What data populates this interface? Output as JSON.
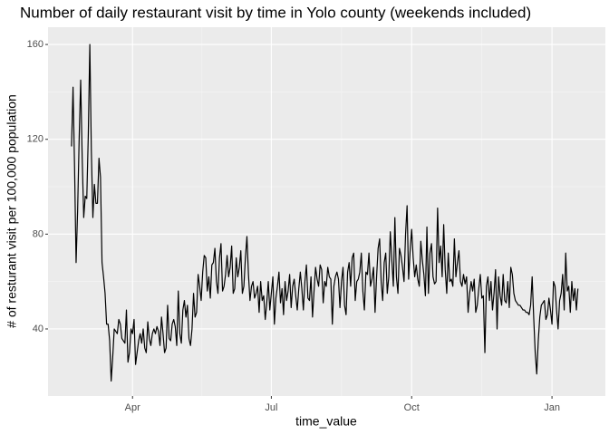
{
  "chart_data": {
    "type": "line",
    "title": "Number of daily restaurant visit by time in Yolo county (weekends included)",
    "x_label": "time_value",
    "y_label": "# of resturant visit per 100,000 population",
    "x": [
      52,
      53,
      54,
      55,
      56,
      57,
      58,
      59,
      60,
      61,
      62,
      63,
      64,
      65,
      66,
      67,
      68,
      69,
      70,
      71,
      72,
      73,
      74,
      75,
      76,
      77,
      78,
      79,
      80,
      81,
      82,
      83,
      84,
      85,
      86,
      87,
      88,
      89,
      90,
      91,
      92,
      93,
      94,
      95,
      96,
      97,
      98,
      99,
      100,
      101,
      102,
      103,
      104,
      105,
      106,
      107,
      108,
      109,
      110,
      111,
      112,
      113,
      114,
      115,
      116,
      117,
      118,
      119,
      120,
      121,
      122,
      123,
      124,
      125,
      126,
      127,
      128,
      129,
      130,
      131,
      132,
      133,
      134,
      135,
      136,
      137,
      138,
      139,
      140,
      141,
      142,
      143,
      144,
      145,
      146,
      147,
      148,
      149,
      150,
      151,
      152,
      153,
      154,
      155,
      156,
      157,
      158,
      159,
      160,
      161,
      162,
      163,
      164,
      165,
      166,
      167,
      168,
      169,
      170,
      171,
      172,
      173,
      174,
      175,
      176,
      177,
      178,
      179,
      180,
      181,
      182,
      183,
      184,
      185,
      186,
      187,
      188,
      189,
      190,
      191,
      192,
      193,
      194,
      195,
      196,
      197,
      198,
      199,
      200,
      201,
      202,
      203,
      204,
      205,
      206,
      207,
      208,
      209,
      210,
      211,
      212,
      213,
      214,
      215,
      216,
      217,
      218,
      219,
      220,
      221,
      222,
      223,
      224,
      225,
      226,
      227,
      228,
      229,
      230,
      231,
      232,
      233,
      234,
      235,
      236,
      237,
      238,
      239,
      240,
      241,
      242,
      243,
      244,
      245,
      246,
      247,
      248,
      249,
      250,
      251,
      252,
      253,
      254,
      255,
      256,
      257,
      258,
      259,
      260,
      261,
      262,
      263,
      264,
      265,
      266,
      267,
      268,
      269,
      270,
      271,
      272,
      273,
      274,
      275,
      276,
      277,
      278,
      279,
      280,
      281,
      282,
      283,
      284,
      285,
      286,
      287,
      288,
      289,
      290,
      291,
      292,
      293,
      294,
      295,
      296,
      297,
      298,
      299,
      300,
      301,
      302,
      303,
      304,
      305,
      306,
      307,
      308,
      309,
      310,
      311,
      312,
      313,
      314,
      315,
      316,
      317,
      318,
      319,
      320,
      321,
      322,
      323,
      324,
      325,
      326,
      327,
      328,
      329,
      330,
      331,
      332,
      333,
      334,
      335,
      336,
      337,
      338,
      339,
      340,
      341,
      342,
      343,
      344,
      345,
      346,
      347,
      348,
      349,
      350,
      351,
      352,
      353,
      354,
      355,
      356,
      357,
      358,
      359,
      360,
      361,
      362,
      363,
      364,
      365,
      366,
      367,
      368,
      369,
      370,
      371,
      372,
      373,
      374,
      375,
      376,
      377,
      378,
      379,
      380,
      381,
      382,
      383,
      384
    ],
    "values": [
      117,
      142,
      108,
      68,
      90,
      120,
      145,
      112,
      87,
      96,
      95,
      122,
      160,
      115,
      87,
      101,
      93,
      93,
      112,
      104,
      68,
      62,
      55,
      42,
      42,
      35,
      18,
      28,
      40,
      39,
      38,
      44,
      42,
      36,
      35,
      34,
      48,
      26,
      30,
      40,
      38,
      44,
      25,
      30,
      35,
      38,
      34,
      40,
      32,
      30,
      43,
      36,
      33,
      38,
      40,
      38,
      41,
      39,
      33,
      45,
      38,
      30,
      32,
      50,
      36,
      35,
      42,
      44,
      41,
      33,
      56,
      38,
      34,
      48,
      52,
      45,
      50,
      36,
      33,
      40,
      55,
      45,
      47,
      63,
      58,
      52,
      64,
      71,
      70,
      56,
      62,
      53,
      67,
      68,
      74,
      60,
      55,
      70,
      76,
      56,
      58,
      63,
      71,
      62,
      66,
      75,
      55,
      57,
      70,
      62,
      66,
      73,
      55,
      58,
      70,
      79,
      63,
      52,
      58,
      60,
      53,
      55,
      58,
      47,
      60,
      52,
      54,
      44,
      51,
      60,
      48,
      55,
      62,
      42,
      53,
      58,
      64,
      51,
      57,
      46,
      60,
      52,
      56,
      63,
      49,
      58,
      61,
      54,
      48,
      57,
      64,
      57,
      48,
      60,
      67,
      53,
      52,
      62,
      45,
      56,
      66,
      61,
      58,
      67,
      65,
      51,
      60,
      58,
      66,
      62,
      61,
      42,
      58,
      62,
      64,
      61,
      49,
      60,
      66,
      50,
      46,
      64,
      68,
      58,
      70,
      72,
      52,
      60,
      61,
      64,
      72,
      56,
      48,
      64,
      63,
      72,
      58,
      61,
      66,
      47,
      62,
      74,
      78,
      60,
      52,
      68,
      72,
      55,
      62,
      81,
      69,
      58,
      87,
      62,
      55,
      74,
      71,
      66,
      60,
      80,
      92,
      61,
      73,
      82,
      70,
      62,
      67,
      61,
      58,
      77,
      69,
      63,
      54,
      83,
      55,
      72,
      76,
      62,
      59,
      60,
      91,
      68,
      75,
      62,
      84,
      65,
      55,
      72,
      60,
      61,
      58,
      78,
      62,
      68,
      73,
      60,
      58,
      63,
      59,
      62,
      47,
      55,
      60,
      56,
      61,
      47,
      50,
      57,
      63,
      53,
      54,
      30,
      58,
      62,
      52,
      60,
      48,
      55,
      65,
      40,
      62,
      54,
      50,
      63,
      52,
      51,
      60,
      49,
      66,
      63,
      55,
      52,
      51,
      50,
      50,
      49,
      48,
      48,
      47,
      47,
      46,
      50,
      62,
      45,
      30,
      21,
      35,
      45,
      50,
      51,
      52,
      44,
      46,
      53,
      48,
      42,
      60,
      58,
      48,
      40,
      52,
      55,
      63,
      48,
      72,
      56,
      58,
      47,
      60,
      52,
      57,
      48,
      57
    ],
    "color": "#000000",
    "xlim": [
      36.6,
      402
    ],
    "xticks": [
      {
        "value": 92,
        "label": "Apr"
      },
      {
        "value": 183,
        "label": "Jul"
      },
      {
        "value": 275,
        "label": "Oct"
      },
      {
        "value": 367,
        "label": "Jan"
      }
    ],
    "ylim": [
      11.7,
      167.3
    ],
    "yticks": [
      40,
      80,
      120,
      160
    ],
    "grid": true
  }
}
